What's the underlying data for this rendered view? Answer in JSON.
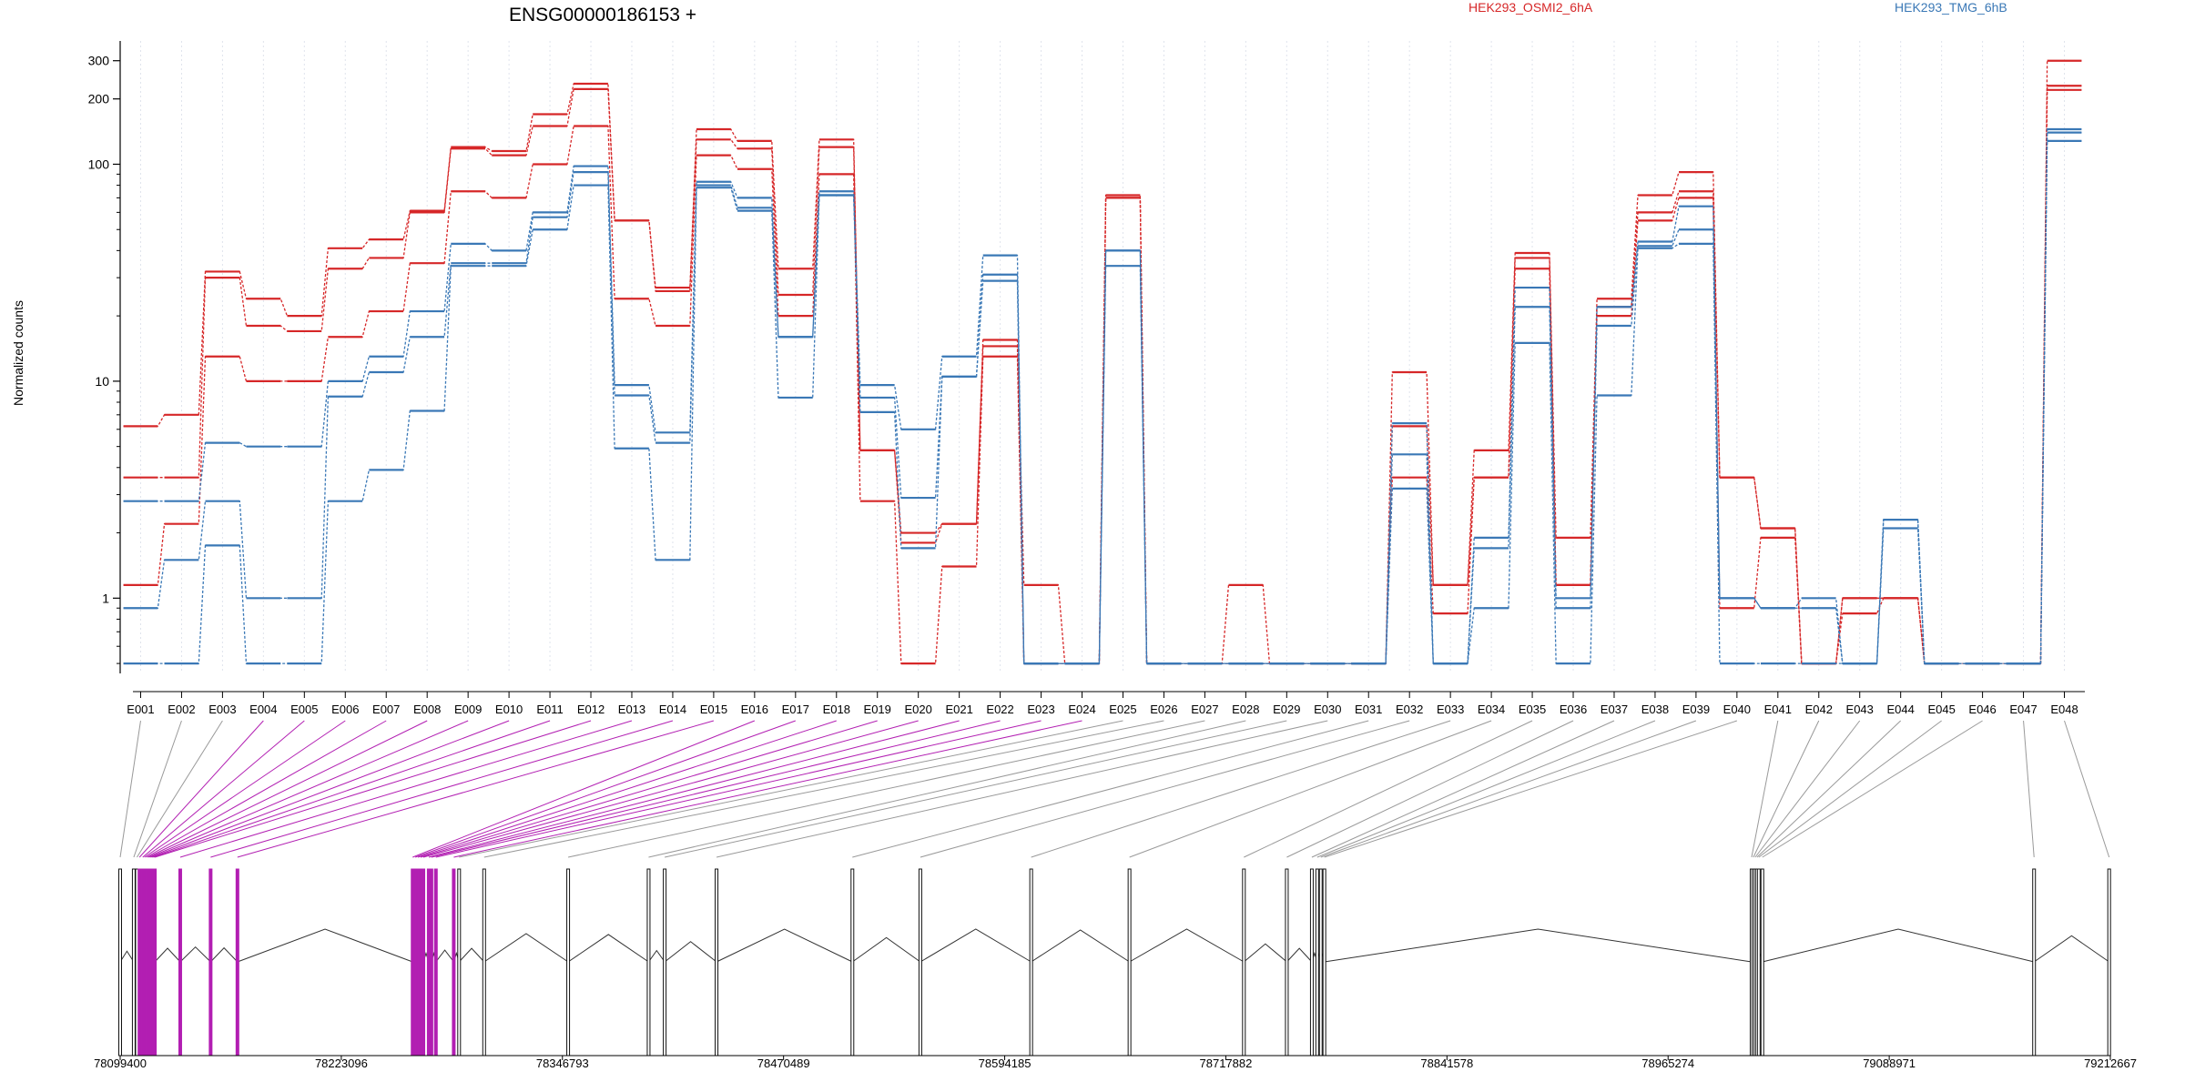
{
  "chart_data": {
    "type": "line",
    "title": "ENSG00000186153 +",
    "ylabel": "Normalized counts",
    "y_scale": "log",
    "ylim": [
      0.45,
      370
    ],
    "y_ticks": [
      1,
      10,
      100,
      200,
      300
    ],
    "grid": "vertical dotted lines at exon bins",
    "exons": [
      "E001",
      "E002",
      "E003",
      "E004",
      "E005",
      "E006",
      "E007",
      "E008",
      "E009",
      "E010",
      "E011",
      "E012",
      "E013",
      "E014",
      "E015",
      "E016",
      "E017",
      "E018",
      "E019",
      "E020",
      "E021",
      "E022",
      "E023",
      "E024",
      "E025",
      "E026",
      "E027",
      "E028",
      "E029",
      "E030",
      "E031",
      "E032",
      "E033",
      "E034",
      "E035",
      "E036",
      "E037",
      "E038",
      "E039",
      "E040",
      "E041",
      "E042",
      "E043",
      "E044",
      "E045",
      "E046",
      "E047",
      "E048"
    ],
    "legend": [
      {
        "name": "HEK293_OSMI2_6hA",
        "color": "#d62728"
      },
      {
        "name": "HEK293_TMG_6hB",
        "color": "#3a78b6"
      }
    ],
    "series": [
      {
        "name": "HEK293_OSMI2_6hA",
        "color": "#d62728",
        "values": [
          6.2,
          7.0,
          32,
          24,
          20,
          41,
          45,
          61,
          120,
          115,
          170,
          235,
          55,
          27,
          145,
          128,
          33,
          130,
          4.8,
          2.0,
          2.2,
          15.5,
          1.15,
          0.5,
          72,
          0.5,
          0.5,
          1.15,
          0.5,
          0.5,
          0.5,
          11,
          1.15,
          4.8,
          39,
          1.9,
          24,
          72,
          92,
          3.6,
          2.1,
          0.5,
          1.0,
          1.0,
          0.5,
          0.5,
          0.5,
          300
        ]
      },
      {
        "name": "HEK293_OSMI2_6hA",
        "color": "#d62728",
        "values": [
          3.6,
          3.6,
          30,
          18,
          17,
          33,
          37,
          60,
          118,
          110,
          150,
          222,
          55,
          26,
          130,
          118,
          25,
          120,
          4.8,
          1.8,
          2.2,
          14.5,
          0.5,
          0.5,
          70,
          0.5,
          0.5,
          0.5,
          0.5,
          0.5,
          0.5,
          6.2,
          1.15,
          3.6,
          37,
          1.15,
          22,
          60,
          75,
          3.6,
          2.1,
          0.5,
          1.0,
          1.0,
          0.5,
          0.5,
          0.5,
          230
        ]
      },
      {
        "name": "HEK293_OSMI2_6hA",
        "color": "#d62728",
        "values": [
          1.15,
          2.2,
          13,
          10,
          10,
          16,
          21,
          35,
          75,
          70,
          100,
          150,
          24,
          18,
          110,
          95,
          20,
          90,
          2.8,
          0.5,
          1.4,
          13,
          0.5,
          0.5,
          70,
          0.5,
          0.5,
          0.5,
          0.5,
          0.5,
          0.5,
          3.6,
          0.85,
          3.6,
          33,
          1.15,
          20,
          55,
          70,
          0.9,
          1.9,
          0.5,
          0.85,
          1.0,
          0.5,
          0.5,
          0.5,
          220
        ]
      },
      {
        "name": "HEK293_TMG_6hB",
        "color": "#3a78b6",
        "values": [
          2.8,
          2.8,
          5.2,
          5.0,
          5.0,
          10,
          13,
          21,
          43,
          40,
          60,
          98,
          9.6,
          5.8,
          83,
          70,
          16,
          75,
          9.6,
          6.0,
          13,
          38,
          0.5,
          0.5,
          40,
          0.5,
          0.5,
          0.5,
          0.5,
          0.5,
          0.5,
          6.4,
          0.5,
          1.9,
          27,
          1.0,
          22,
          44,
          64,
          1.0,
          0.9,
          1.0,
          0.5,
          2.3,
          0.5,
          0.5,
          0.5,
          145
        ]
      },
      {
        "name": "HEK293_TMG_6hB",
        "color": "#3a78b6",
        "values": [
          0.9,
          1.5,
          2.8,
          1.0,
          1.0,
          8.5,
          11,
          16,
          35,
          35,
          57,
          92,
          8.6,
          5.2,
          80,
          63,
          16,
          72,
          8.4,
          2.9,
          10.5,
          31,
          0.5,
          0.5,
          40,
          0.5,
          0.5,
          0.5,
          0.5,
          0.5,
          0.5,
          4.6,
          0.5,
          1.7,
          22,
          0.9,
          18,
          42,
          50,
          1.0,
          0.9,
          0.9,
          0.5,
          2.3,
          0.5,
          0.5,
          0.5,
          140
        ]
      },
      {
        "name": "HEK293_TMG_6hB",
        "color": "#3a78b6",
        "values": [
          0.5,
          0.5,
          1.75,
          0.5,
          0.5,
          2.8,
          3.9,
          7.3,
          34,
          34,
          50,
          80,
          4.9,
          1.5,
          78,
          61,
          8.4,
          72,
          7.2,
          1.7,
          10.5,
          29,
          0.5,
          0.5,
          34,
          0.5,
          0.5,
          0.5,
          0.5,
          0.5,
          0.5,
          3.2,
          0.5,
          0.9,
          15,
          0.5,
          8.6,
          41,
          43,
          0.5,
          0.5,
          0.5,
          0.5,
          2.1,
          0.5,
          0.5,
          0.5,
          128
        ]
      }
    ],
    "gene_model": {
      "coordinate_ticks": [
        "78099400",
        "78223096",
        "78346793",
        "78470489",
        "78594185",
        "78717882",
        "78841578",
        "78965274",
        "79088971",
        "79212667"
      ],
      "range": [
        78099400,
        79212667
      ],
      "highlight_color": "#b21fb2",
      "highlighted_exons": [
        "E004",
        "E005",
        "E006",
        "E007",
        "E008",
        "E009",
        "E010",
        "E011",
        "E012",
        "E013",
        "E014",
        "E015",
        "E016",
        "E017",
        "E018",
        "E019",
        "E020",
        "E021",
        "E022",
        "E023",
        "E024"
      ],
      "exon_positions": [
        78099400,
        78107000,
        78108800,
        78110200,
        78112000,
        78113000,
        78114000,
        78115000,
        78116000,
        78117000,
        78118000,
        78118800,
        78133000,
        78150000,
        78165000,
        78263000,
        78264500,
        78266000,
        78267500,
        78269000,
        78272000,
        78273500,
        78276000,
        78286000,
        78289000,
        78303000,
        78350000,
        78395000,
        78404000,
        78433000,
        78509000,
        78547000,
        78609000,
        78664000,
        78728000,
        78752000,
        78766000,
        78769000,
        78771000,
        78773000,
        79012000,
        79013000,
        79014000,
        79015000,
        79016000,
        79018000,
        79170000,
        79212000
      ]
    }
  }
}
